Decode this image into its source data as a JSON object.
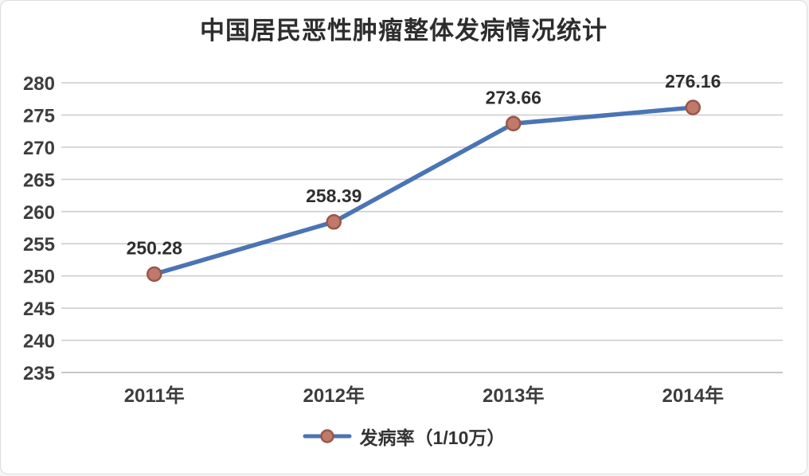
{
  "page": {
    "title": "中国居民恶性肿瘤整体发病情况统计"
  },
  "legend": {
    "label": "发病率（1/10万）"
  },
  "chart_data": {
    "type": "line",
    "title": "中国居民恶性肿瘤整体发病情况统计",
    "categories": [
      "2011年",
      "2012年",
      "2013年",
      "2014年"
    ],
    "series": [
      {
        "name": "发病率（1/10万）",
        "values": [
          250.28,
          258.39,
          273.66,
          276.16
        ],
        "labels": [
          "250.28",
          "258.39",
          "273.66",
          "276.16"
        ]
      }
    ],
    "xlabel": "",
    "ylabel": "",
    "ylim": [
      235,
      280
    ],
    "ytick_step": 5,
    "grid": true,
    "legend_position": "bottom",
    "marker_shape": "circle",
    "colors": {
      "line": "#4a74b4",
      "marker_fill": "#c0796a",
      "marker_stroke": "#96584a",
      "grid": "#cbcbcb",
      "axis": "#b3b3b3",
      "text": "#3d3d3d",
      "title": "#2d2d2d",
      "background": "#ffffff"
    }
  }
}
